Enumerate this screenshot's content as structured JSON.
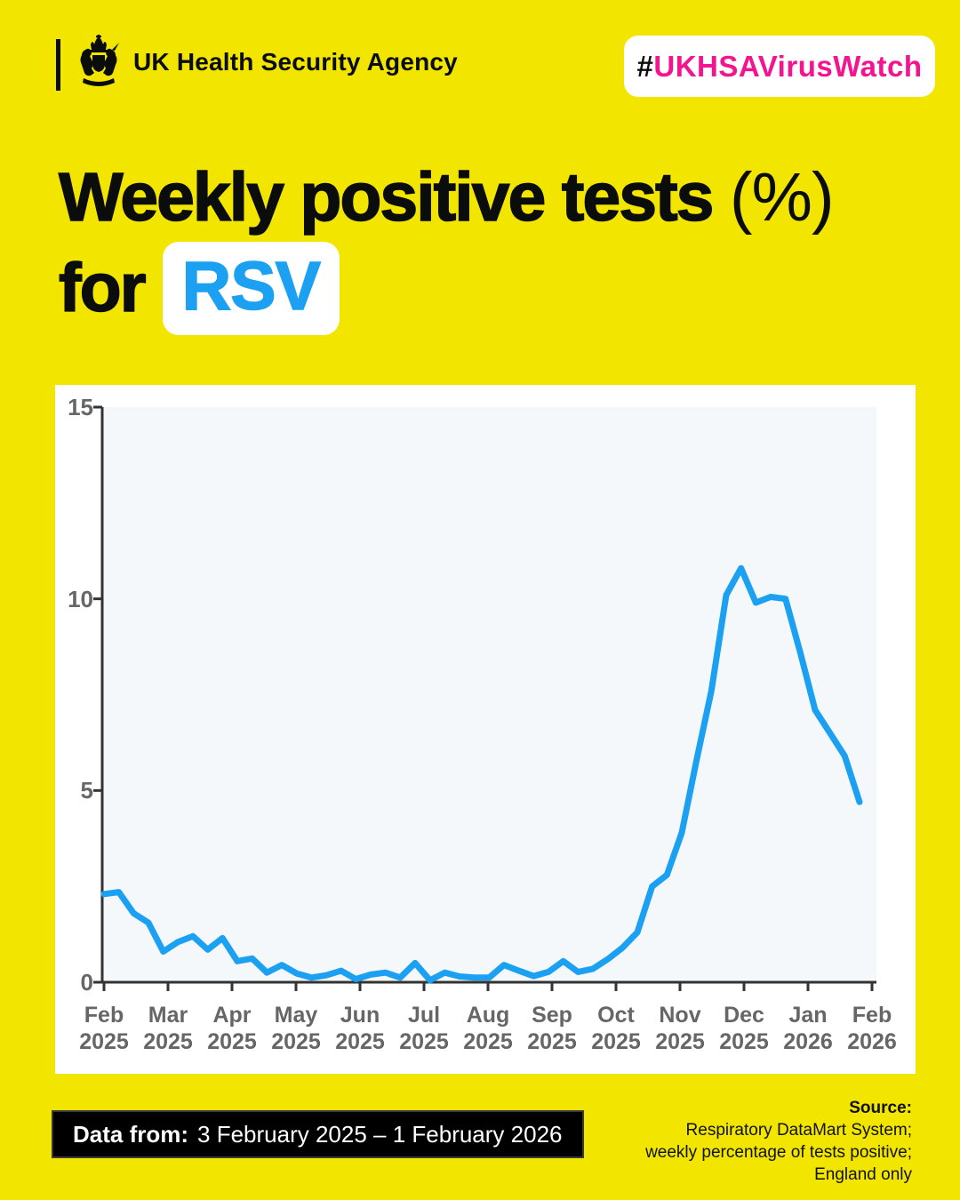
{
  "header": {
    "org_name": "UK Health Security Agency",
    "hashtag": {
      "prefix": "#",
      "text": "UKHSAVirusWatch"
    }
  },
  "title": {
    "line1_heavy": "Weekly positive tests",
    "line1_regular": "(%)",
    "line2_word": "for",
    "line2_highlight": "RSV"
  },
  "chart_data": {
    "type": "line",
    "title": "Weekly positive tests (%) for RSV",
    "xlabel": "",
    "ylabel": "",
    "ylim": [
      0,
      15
    ],
    "yticks": [
      0,
      5,
      10,
      15
    ],
    "grid": false,
    "legend": "none",
    "x_unit": "week",
    "x_tick_labels": [
      {
        "month": "Feb",
        "year": "2025"
      },
      {
        "month": "Mar",
        "year": "2025"
      },
      {
        "month": "Apr",
        "year": "2025"
      },
      {
        "month": "May",
        "year": "2025"
      },
      {
        "month": "Jun",
        "year": "2025"
      },
      {
        "month": "Jul",
        "year": "2025"
      },
      {
        "month": "Aug",
        "year": "2025"
      },
      {
        "month": "Sep",
        "year": "2025"
      },
      {
        "month": "Oct",
        "year": "2025"
      },
      {
        "month": "Nov",
        "year": "2025"
      },
      {
        "month": "Dec",
        "year": "2025"
      },
      {
        "month": "Jan",
        "year": "2026"
      },
      {
        "month": "Feb",
        "year": "2026"
      }
    ],
    "series": [
      {
        "name": "RSV weekly percentage of tests positive",
        "color": "#1CA0F2",
        "values": [
          2.3,
          2.35,
          1.8,
          1.55,
          0.8,
          1.05,
          1.2,
          0.85,
          1.15,
          0.55,
          0.62,
          0.25,
          0.45,
          0.23,
          0.12,
          0.18,
          0.3,
          0.08,
          0.2,
          0.25,
          0.12,
          0.5,
          0.05,
          0.25,
          0.15,
          0.12,
          0.12,
          0.45,
          0.3,
          0.16,
          0.27,
          0.55,
          0.27,
          0.35,
          0.6,
          0.9,
          1.3,
          2.5,
          2.8,
          3.9,
          5.8,
          7.6,
          10.1,
          10.8,
          9.9,
          10.05,
          10.0,
          8.6,
          7.1,
          6.5,
          5.9,
          4.7
        ]
      }
    ],
    "plot_background": "#F4F8FA"
  },
  "footer": {
    "data_from_label": "Data from:",
    "data_from_value": "3 February 2025 – 1 February 2026",
    "source_label": "Source:",
    "source_lines": [
      "Respiratory DataMart System;",
      "weekly percentage of tests positive;",
      "England only"
    ]
  },
  "colors": {
    "background_yellow": "#F2E500",
    "accent_blue": "#1CA0F2",
    "hashtag_pink": "#F5148F",
    "plot_background": "#F4F8FA",
    "axis_gray": "#333333",
    "axis_label_gray": "#666666",
    "data_box_black": "#000000"
  }
}
